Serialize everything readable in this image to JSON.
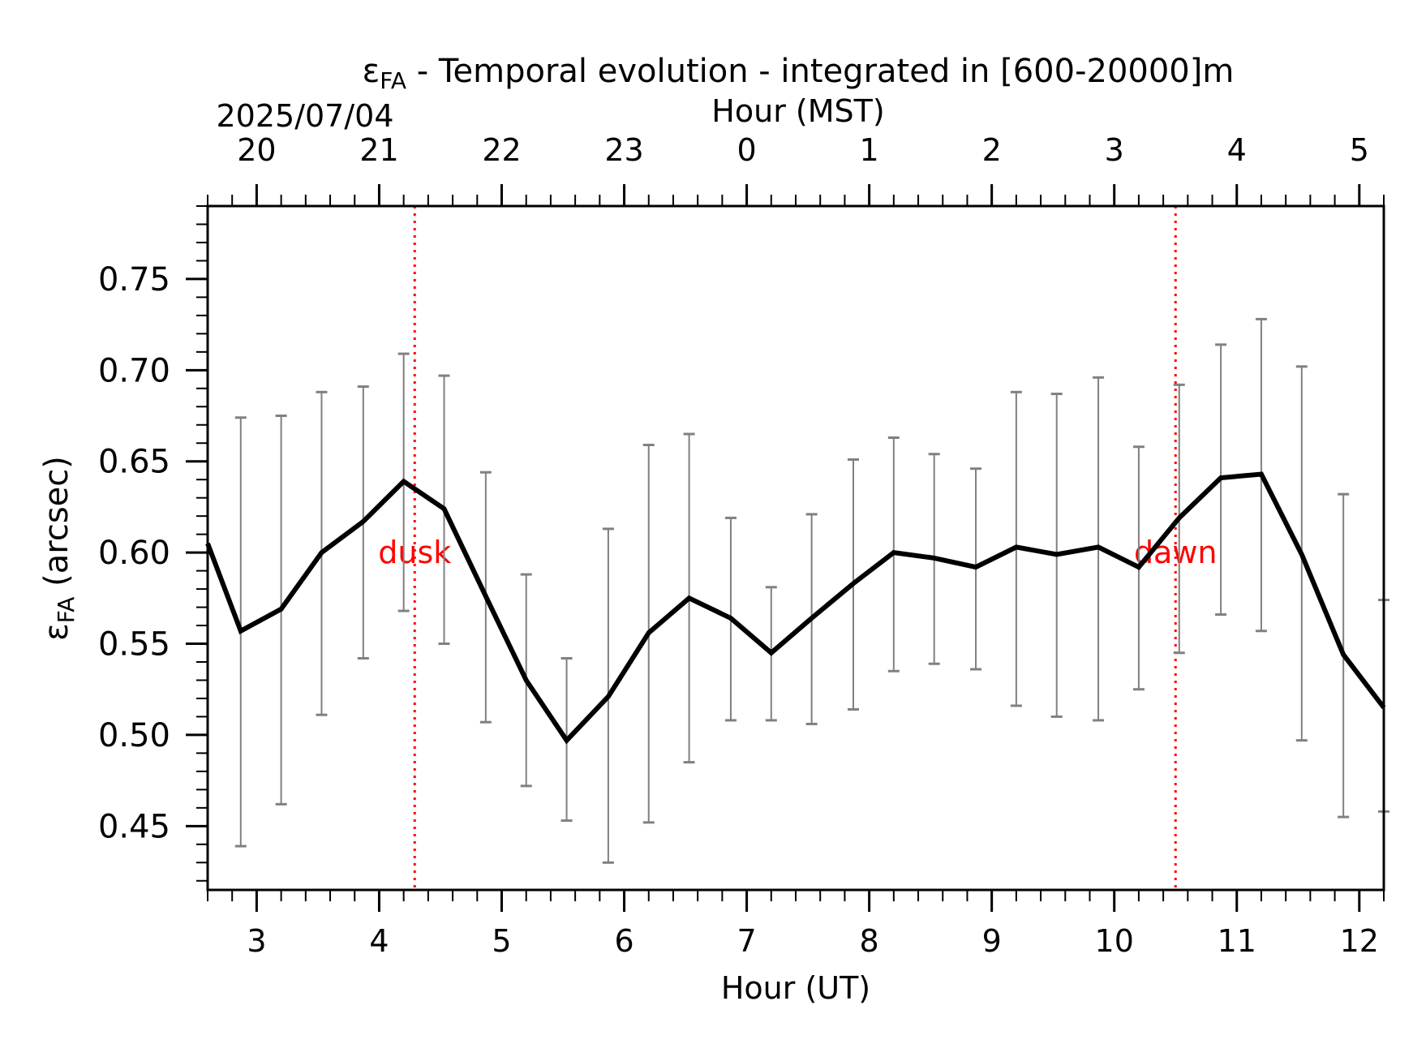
{
  "chart_data": {
    "type": "line",
    "title_symbol": "ε",
    "title_subscript": "FA",
    "title_rest": " - Temporal evolution - integrated in [600-20000]m",
    "xlabel": "Hour (UT)",
    "ylabel_symbol": "ε",
    "ylabel_subscript": "FA",
    "ylabel_rest": " (arcsec)",
    "top_axis_label": "Hour (MST)",
    "top_axis_date": "2025/07/04",
    "xlim": [
      2.6,
      12.2
    ],
    "ylim": [
      0.415,
      0.79
    ],
    "x_ticks": [
      3,
      4,
      5,
      6,
      7,
      8,
      9,
      10,
      11,
      12
    ],
    "x_tick_labels": [
      "3",
      "4",
      "5",
      "6",
      "7",
      "8",
      "9",
      "10",
      "11",
      "12"
    ],
    "y_ticks": [
      0.45,
      0.5,
      0.55,
      0.6,
      0.65,
      0.7,
      0.75
    ],
    "y_tick_labels": [
      "0.45",
      "0.50",
      "0.55",
      "0.60",
      "0.65",
      "0.70",
      "0.75"
    ],
    "top_ticks_ut": [
      3,
      4,
      5,
      6,
      7,
      8,
      9,
      10,
      11,
      12
    ],
    "top_tick_labels": [
      "20",
      "21",
      "22",
      "23",
      "0",
      "1",
      "2",
      "3",
      "4",
      "5"
    ],
    "series": [
      {
        "color": "#000000",
        "x": [
          2.6,
          2.87,
          3.2,
          3.53,
          3.87,
          4.2,
          4.53,
          4.87,
          5.2,
          5.53,
          5.87,
          6.2,
          6.53,
          6.87,
          7.2,
          7.53,
          7.87,
          8.2,
          8.53,
          8.87,
          9.2,
          9.53,
          9.87,
          10.2,
          10.53,
          10.87,
          11.2,
          11.53,
          11.87,
          12.2
        ],
        "y": [
          0.605,
          0.557,
          0.569,
          0.6,
          0.617,
          0.639,
          0.624,
          0.576,
          0.53,
          0.497,
          0.521,
          0.556,
          0.575,
          0.564,
          0.545,
          0.564,
          0.583,
          0.6,
          0.597,
          0.592,
          0.603,
          0.599,
          0.603,
          0.592,
          0.619,
          0.641,
          0.643,
          0.599,
          0.544,
          0.515
        ]
      }
    ],
    "error_bars": {
      "color": "#808080",
      "x": [
        2.87,
        3.2,
        3.53,
        3.87,
        4.2,
        4.53,
        4.87,
        5.2,
        5.53,
        5.87,
        6.2,
        6.53,
        6.87,
        7.2,
        7.53,
        7.87,
        8.2,
        8.53,
        8.87,
        9.2,
        9.53,
        9.87,
        10.2,
        10.53,
        10.87,
        11.2,
        11.53,
        11.87,
        12.2
      ],
      "low": [
        0.439,
        0.462,
        0.511,
        0.542,
        0.568,
        0.55,
        0.507,
        0.472,
        0.453,
        0.43,
        0.452,
        0.485,
        0.508,
        0.508,
        0.506,
        0.514,
        0.535,
        0.539,
        0.536,
        0.516,
        0.51,
        0.508,
        0.525,
        0.545,
        0.566,
        0.557,
        0.497,
        0.455,
        0.458
      ],
      "high": [
        0.674,
        0.675,
        0.688,
        0.691,
        0.709,
        0.697,
        0.644,
        0.588,
        0.542,
        0.613,
        0.659,
        0.665,
        0.619,
        0.581,
        0.621,
        0.651,
        0.663,
        0.654,
        0.646,
        0.688,
        0.687,
        0.696,
        0.658,
        0.692,
        0.714,
        0.728,
        0.702,
        0.632,
        0.574
      ]
    },
    "annotations": [
      {
        "x": 4.29,
        "label": "dusk",
        "color": "#ff0000",
        "line": "dotted"
      },
      {
        "x": 10.5,
        "label": "dawn",
        "color": "#ff0000",
        "line": "dotted"
      }
    ]
  }
}
